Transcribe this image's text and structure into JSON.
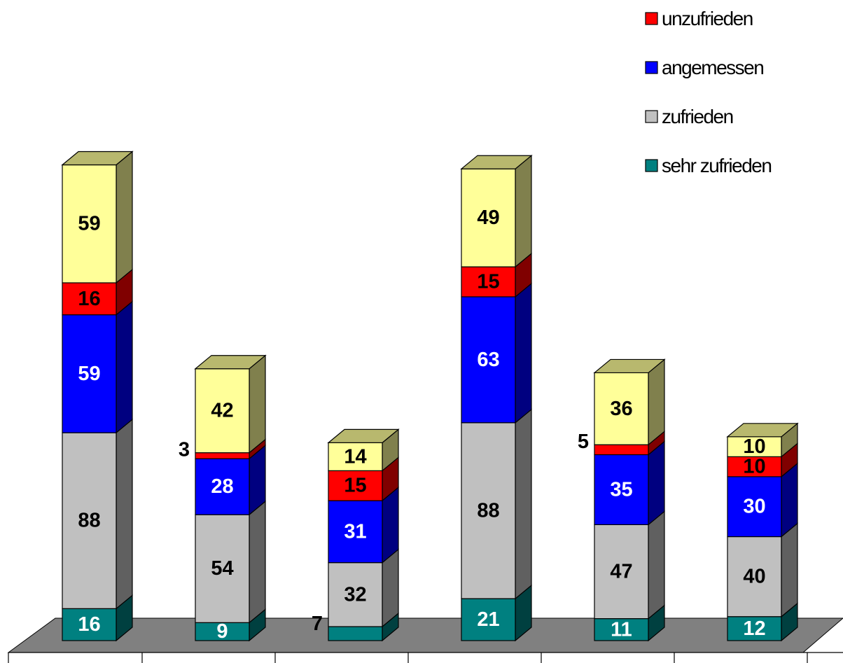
{
  "chart_data": {
    "type": "bar",
    "stacked": true,
    "three_d": true,
    "categories": [
      "",
      "",
      "",
      "",
      "",
      ""
    ],
    "series": [
      {
        "name": "sehr zufrieden",
        "values": [
          16,
          9,
          7,
          21,
          11,
          12
        ],
        "color": "#008080",
        "label_color": "#ffffff"
      },
      {
        "name": " zufrieden",
        "values": [
          88,
          54,
          32,
          88,
          47,
          40
        ],
        "color": "#c0c0c0",
        "label_color": "#000000"
      },
      {
        "name": "angemessen",
        "values": [
          59,
          28,
          31,
          63,
          35,
          30
        ],
        "color": "#0000ff",
        "label_color": "#ffffff"
      },
      {
        "name": "unzufrieden",
        "values": [
          16,
          3,
          15,
          15,
          5,
          10
        ],
        "color": "#ff0000",
        "label_color": "#000000"
      },
      {
        "name": "",
        "values": [
          59,
          42,
          14,
          49,
          36,
          10
        ],
        "color": "#ffff99",
        "label_color": "#000000"
      }
    ],
    "legend_order": [
      3,
      2,
      1,
      0
    ],
    "legend_position": "top-right",
    "floor_color": "#808080",
    "grid": false
  }
}
